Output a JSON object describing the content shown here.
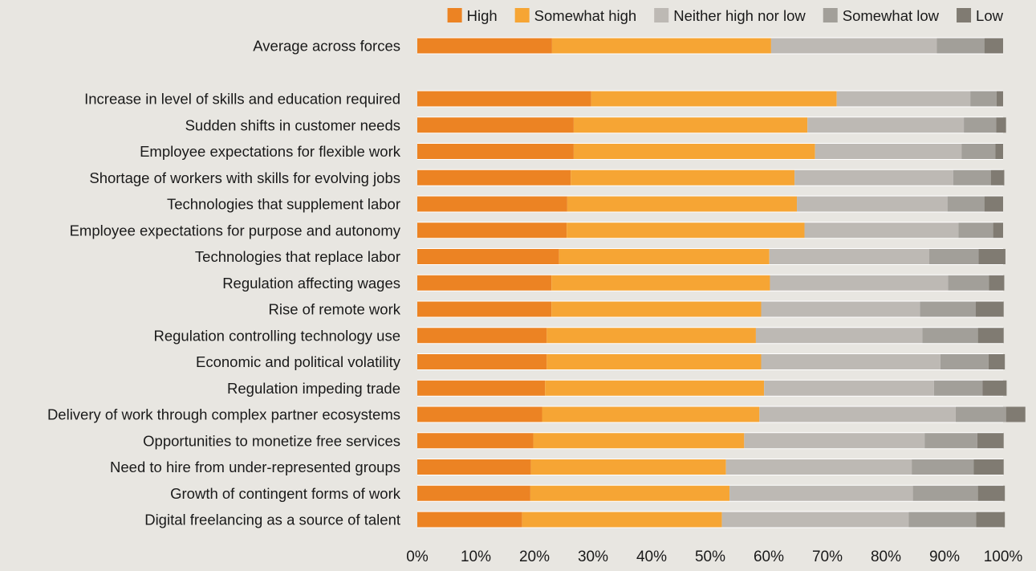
{
  "chart_data": {
    "type": "bar",
    "orientation": "horizontal",
    "stacked": true,
    "legend_placement": "top-right",
    "grid": false,
    "xlim": [
      0,
      100
    ],
    "x_ticks": [
      "0%",
      "10%",
      "20%",
      "30%",
      "40%",
      "50%",
      "60%",
      "70%",
      "80%",
      "90%",
      "100%"
    ],
    "title": "",
    "xlabel": "",
    "ylabel": "",
    "categories": [
      "Average across forces",
      "Increase in level of skills and education required",
      "Sudden shifts in customer needs",
      "Employee expectations for flexible work",
      "Shortage of workers with skills for evolving jobs",
      "Technologies that supplement labor",
      "Employee expectations for purpose and autonomy",
      "Technologies that replace labor",
      "Regulation affecting wages",
      "Rise of remote work",
      "Regulation controlling technology use",
      "Economic and political volatility",
      "Regulation impeding trade",
      "Delivery of work through complex partner ecosystems",
      "Opportunities to monetize free services",
      "Need to hire from under-represented groups",
      "Growth of contingent forms of work",
      "Digital freelancing as a source of talent"
    ],
    "series": [
      {
        "name": "High",
        "color": "#ec8323",
        "values": [
          23,
          29.7,
          26.7,
          26.7,
          26.2,
          25.6,
          25.5,
          24.2,
          22.9,
          22.9,
          22.1,
          22.1,
          21.8,
          21.3,
          19.8,
          19.4,
          19.3,
          17.9
        ]
      },
      {
        "name": "Somewhat high",
        "color": "#f6a534",
        "values": [
          37.4,
          41.9,
          39.9,
          41.2,
          38.2,
          39.2,
          40.6,
          35.9,
          37.3,
          35.8,
          35.7,
          36.6,
          37.4,
          37.1,
          36.0,
          33.3,
          34.0,
          34.1
        ]
      },
      {
        "name": "Neither high nor low",
        "color": "#bdb9b4",
        "values": [
          28.3,
          22.8,
          26.7,
          25.0,
          27.1,
          25.7,
          26.3,
          27.3,
          30.4,
          27.1,
          28.4,
          30.6,
          29.0,
          33.5,
          30.8,
          31.7,
          31.3,
          31.9
        ]
      },
      {
        "name": "Somewhat low",
        "color": "#a29f99",
        "values": [
          8.1,
          4.5,
          5.5,
          5.8,
          6.4,
          6.3,
          5.9,
          8.4,
          7.0,
          9.5,
          9.5,
          8.2,
          8.3,
          8.6,
          9.0,
          10.6,
          11.1,
          11.5
        ]
      },
      {
        "name": "Low",
        "color": "#807b72",
        "values": [
          3.2,
          1.1,
          1.7,
          1.3,
          2.3,
          3.2,
          1.7,
          4.6,
          2.6,
          4.8,
          4.4,
          2.8,
          4.1,
          3.3,
          4.5,
          5.1,
          4.6,
          4.9
        ]
      }
    ]
  }
}
